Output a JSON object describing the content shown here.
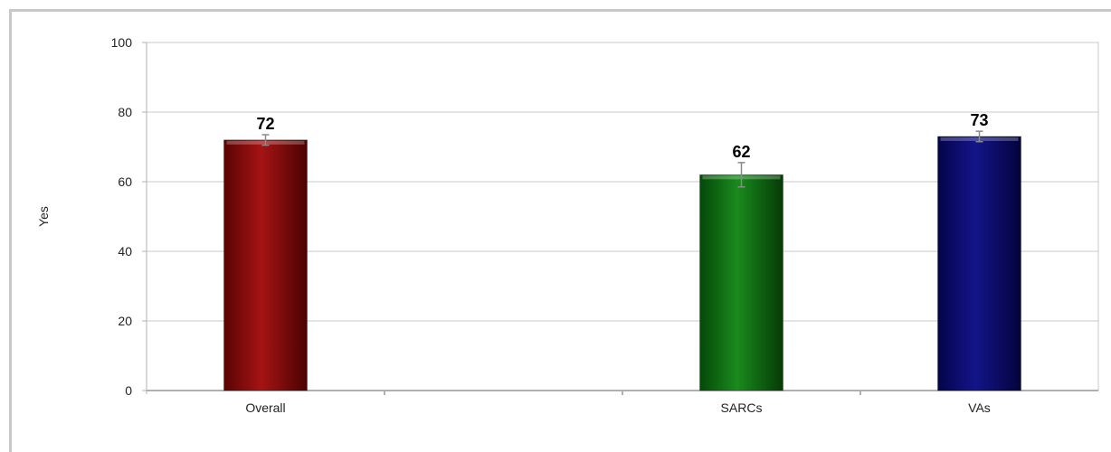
{
  "chart_data": {
    "type": "bar",
    "title": "",
    "xlabel": "",
    "ylabel": "Yes",
    "ylim": [
      0,
      100
    ],
    "yticks": [
      0,
      20,
      40,
      60,
      80,
      100
    ],
    "grid": true,
    "legend": "none",
    "category_slots": [
      "Overall",
      "",
      "SARCs",
      "VAs"
    ],
    "categories": [
      "Overall",
      "SARCs",
      "VAs"
    ],
    "values": [
      72,
      62,
      73
    ],
    "error": [
      1.5,
      3.5,
      1.5
    ],
    "data_labels": [
      "72",
      "62",
      "73"
    ],
    "colors": [
      "#8b0a0a",
      "#0f6e12",
      "#0a0a6e"
    ]
  }
}
